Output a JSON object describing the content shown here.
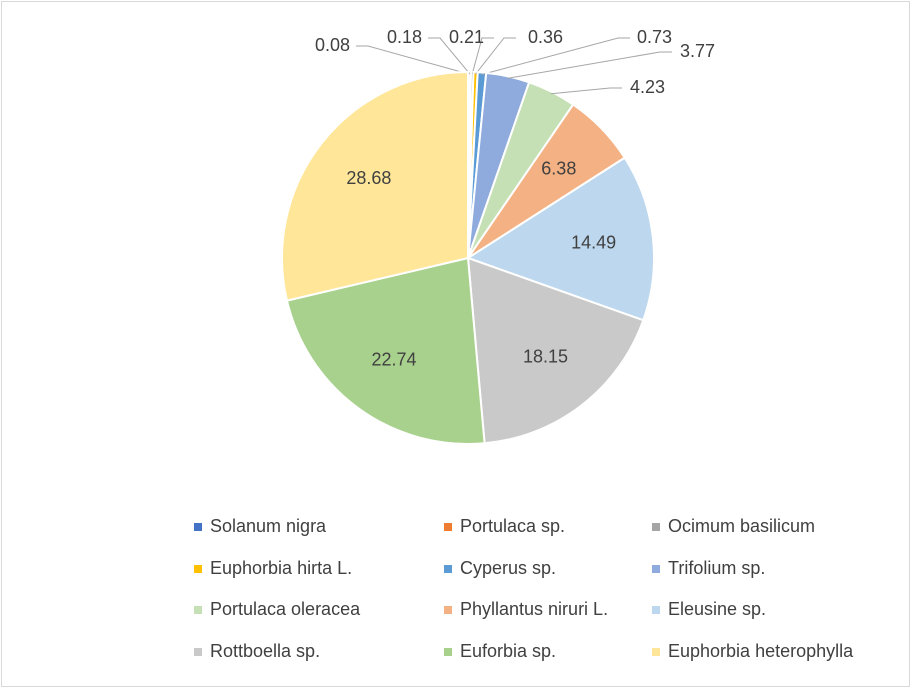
{
  "chart_data": {
    "type": "pie",
    "categories": [
      "Solanum nigra",
      "Portulaca sp.",
      "Ocimum basilicum",
      "Euphorbia hirta L.",
      "Cyperus sp.",
      "Trifolium sp.",
      "Portulaca oleracea",
      "Phyllantus niruri L.",
      "Eleusine sp.",
      "Rottboella sp.",
      "Euforbia sp.",
      "Euphorbia heterophylla"
    ],
    "values": [
      0.08,
      0.18,
      0.21,
      0.36,
      0.73,
      3.77,
      4.23,
      6.38,
      14.49,
      18.15,
      22.74,
      28.68
    ],
    "colors": [
      "#4472c4",
      "#ed7d31",
      "#a5a5a5",
      "#ffc000",
      "#5b9bd5",
      "#8faadc",
      "#c5e0b4",
      "#f4b183",
      "#bdd7ee",
      "#c9c9c9",
      "#a9d18e",
      "#ffe699"
    ],
    "legend": "bottom"
  }
}
